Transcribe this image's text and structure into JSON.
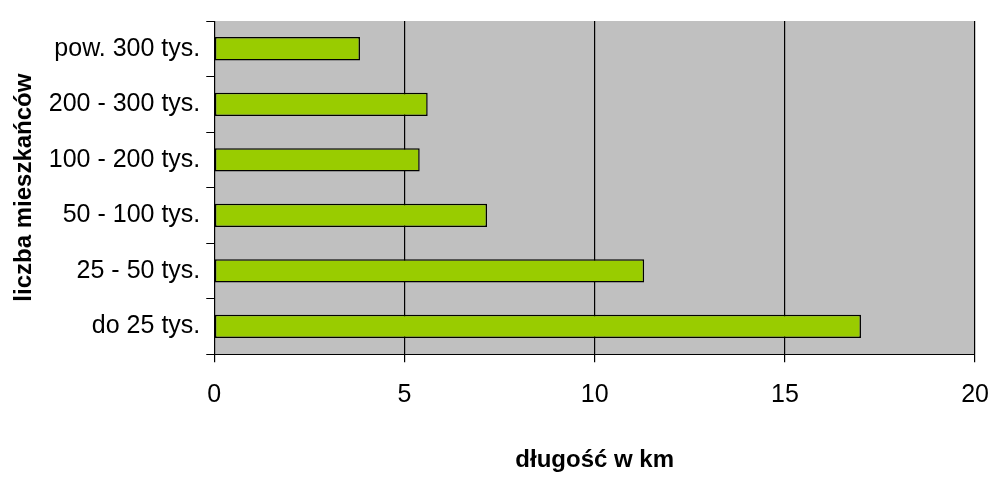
{
  "chart_data": {
    "type": "bar",
    "orientation": "horizontal",
    "xlabel": "długość w km",
    "ylabel": "liczba mieszkańców",
    "categories": [
      "pow. 300 tys.",
      "200 - 300 tys.",
      "100 - 200 tys.",
      "50 - 100 tys.",
      "25 - 50 tys.",
      "do 25 tys."
    ],
    "values": [
      3.83,
      5.61,
      5.4,
      7.17,
      11.3,
      17.0
    ],
    "color": "#99cc00",
    "xlim": [
      0,
      20
    ],
    "xticks": [
      0,
      5,
      10,
      15,
      20
    ],
    "grid": "x",
    "legend": false
  }
}
